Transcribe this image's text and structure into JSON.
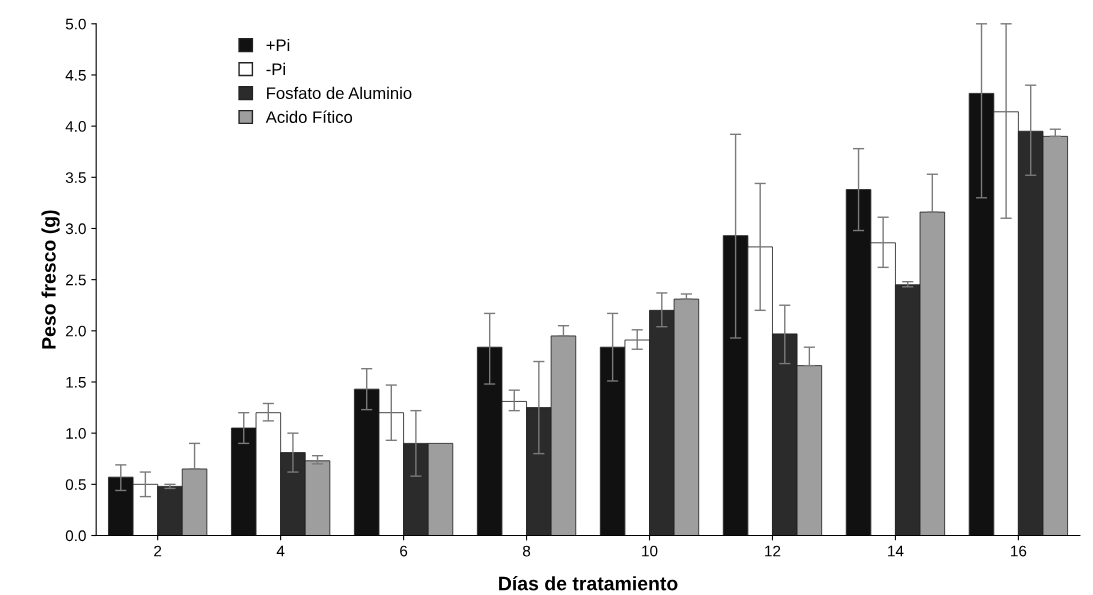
{
  "chart_data": {
    "type": "bar",
    "xlabel": "Días de tratamiento",
    "ylabel": "Peso fresco (g)",
    "categories": [
      "2",
      "4",
      "6",
      "8",
      "10",
      "12",
      "14",
      "16"
    ],
    "series": [
      {
        "name": "+Pi",
        "color": "#111111",
        "values": [
          0.57,
          1.05,
          1.43,
          1.84,
          1.84,
          2.93,
          3.38,
          4.32
        ],
        "errors": [
          [
            0.44,
            0.69
          ],
          [
            0.9,
            1.2
          ],
          [
            1.23,
            1.63
          ],
          [
            1.48,
            2.17
          ],
          [
            1.51,
            2.17
          ],
          [
            1.93,
            3.92
          ],
          [
            2.98,
            3.78
          ],
          [
            3.3,
            5.0
          ]
        ]
      },
      {
        "name": "-Pi",
        "color": "#ffffff",
        "values": [
          0.5,
          1.2,
          1.2,
          1.31,
          1.91,
          2.82,
          2.86,
          4.14
        ],
        "errors": [
          [
            0.38,
            0.62
          ],
          [
            1.12,
            1.29
          ],
          [
            0.93,
            1.47
          ],
          [
            1.22,
            1.42
          ],
          [
            1.82,
            2.01
          ],
          [
            2.2,
            3.44
          ],
          [
            2.62,
            3.11
          ],
          [
            3.1,
            5.0
          ]
        ]
      },
      {
        "name": "Fosfato de Aluminio",
        "color": "#2b2b2b",
        "values": [
          0.48,
          0.81,
          0.9,
          1.25,
          2.2,
          1.97,
          2.45,
          3.95
        ],
        "errors": [
          [
            0.46,
            0.5
          ],
          [
            0.62,
            1.0
          ],
          [
            0.58,
            1.22
          ],
          [
            0.8,
            1.7
          ],
          [
            2.04,
            2.37
          ],
          [
            1.68,
            2.25
          ],
          [
            2.43,
            2.48
          ],
          [
            3.52,
            4.4
          ]
        ]
      },
      {
        "name": "Acido Fítico",
        "color": "#9e9e9e",
        "values": [
          0.65,
          0.73,
          0.9,
          1.95,
          2.31,
          1.66,
          3.16,
          3.9
        ],
        "errors": [
          [
            0.65,
            0.9
          ],
          [
            0.7,
            0.78
          ],
          null,
          [
            1.95,
            2.05
          ],
          [
            2.31,
            2.36
          ],
          [
            1.66,
            1.84
          ],
          [
            3.16,
            3.53
          ],
          [
            3.9,
            3.97
          ]
        ]
      }
    ],
    "ylim": [
      0,
      5
    ],
    "yticks": [
      {
        "value": 0,
        "label": "0.0"
      },
      0.5,
      {
        "value": 1,
        "label": "1.0"
      },
      1.5,
      {
        "value": 2,
        "label": "2.0"
      },
      2.5,
      {
        "value": 3,
        "label": "3.0"
      },
      3.5,
      {
        "value": 4,
        "label": "4.0"
      },
      4.5,
      {
        "value": 5,
        "label": "5.0"
      }
    ],
    "legend": "top left",
    "grid": false
  }
}
